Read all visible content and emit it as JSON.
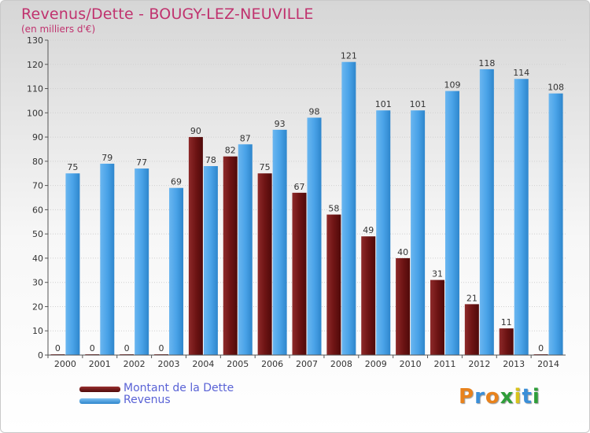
{
  "chart_data": {
    "type": "bar",
    "title": "Revenus/Dette - BOUGY-LEZ-NEUVILLE",
    "subtitle": "(en milliers d'€)",
    "categories": [
      "2000",
      "2001",
      "2002",
      "2003",
      "2004",
      "2005",
      "2006",
      "2007",
      "2008",
      "2009",
      "2010",
      "2011",
      "2012",
      "2013",
      "2014"
    ],
    "series": [
      {
        "name": "Montant de la Dette",
        "color": "#7a1a1a",
        "values": [
          0,
          0,
          0,
          0,
          90,
          82,
          75,
          67,
          58,
          49,
          40,
          31,
          21,
          11,
          0
        ]
      },
      {
        "name": "Revenus",
        "color": "#4aa3e8",
        "values": [
          75,
          79,
          77,
          69,
          78,
          87,
          93,
          98,
          121,
          101,
          101,
          109,
          118,
          114,
          108
        ]
      }
    ],
    "ylim": [
      0,
      130
    ],
    "yticks": [
      0,
      10,
      20,
      30,
      40,
      50,
      60,
      70,
      80,
      90,
      100,
      110,
      120,
      130
    ],
    "grid": true,
    "legend": "bottom-left"
  },
  "logo": {
    "letters": [
      "P",
      "r",
      "o",
      "x",
      "i",
      "t",
      "i"
    ],
    "colors": [
      "#e8821c",
      "#3b8fd8",
      "#e8821c",
      "#2f9e3a",
      "#d8c21c",
      "#3b8fd8",
      "#2f9e3a"
    ]
  }
}
